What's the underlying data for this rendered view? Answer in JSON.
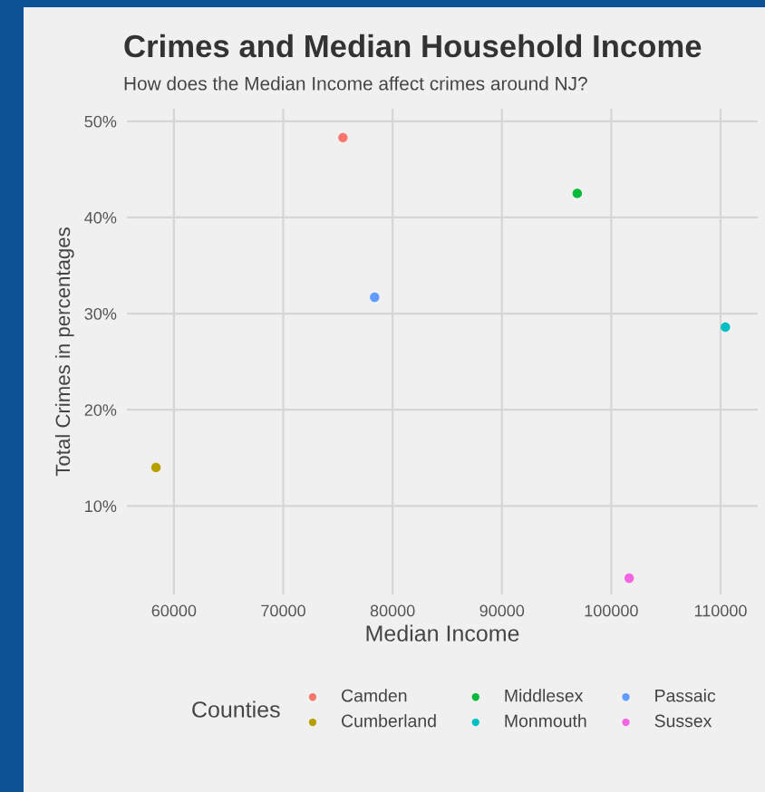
{
  "chart_data": {
    "type": "scatter",
    "title": "Crimes and Median Household Income",
    "subtitle": "How does the Median Income affect crimes around NJ?",
    "xlabel": "Median Income",
    "ylabel": "Total Crimes in percentages",
    "legend_title": "Counties",
    "xlim": [
      55700,
      113400
    ],
    "xticks": [
      60000,
      70000,
      80000,
      90000,
      100000,
      110000
    ],
    "ylim": [
      0.8,
      51.3
    ],
    "yticks": [
      {
        "value": 10,
        "label": "10%"
      },
      {
        "value": 20,
        "label": "20%"
      },
      {
        "value": 30,
        "label": "30%"
      },
      {
        "value": 40,
        "label": "40%"
      },
      {
        "value": 50,
        "label": "50%"
      }
    ],
    "grid": true,
    "legend": "bottom",
    "marker": "circle",
    "series": [
      {
        "name": "Camden",
        "color": "#f8766d",
        "x": [
          75460
        ],
        "values": [
          48.3
        ]
      },
      {
        "name": "Cumberland",
        "color": "#b79f00",
        "x": [
          58360
        ],
        "values": [
          14.0
        ]
      },
      {
        "name": "Middlesex",
        "color": "#00ba38",
        "x": [
          96890
        ],
        "values": [
          42.5
        ]
      },
      {
        "name": "Monmouth",
        "color": "#00bfc4",
        "x": [
          110440
        ],
        "values": [
          28.6
        ]
      },
      {
        "name": "Passaic",
        "color": "#619cff",
        "x": [
          78360
        ],
        "values": [
          31.7
        ]
      },
      {
        "name": "Sussex",
        "color": "#f564e3",
        "x": [
          101640
        ],
        "values": [
          2.5
        ]
      }
    ]
  }
}
